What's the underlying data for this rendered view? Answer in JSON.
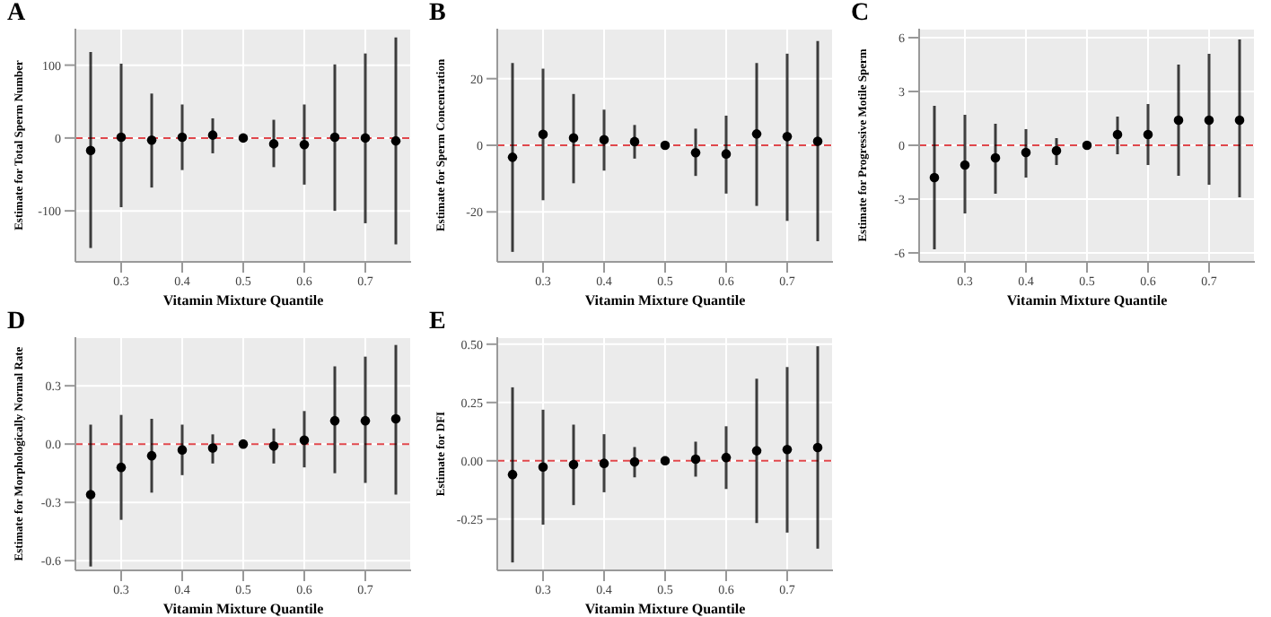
{
  "chart_data": [
    {
      "type": "scatter",
      "title": "A",
      "xlabel": "Vitamin Mixture Quantile",
      "ylabel": "Estimate for Total Sperm Number",
      "color": "#000000",
      "marker": "circle",
      "grid": true,
      "x": [
        0.25,
        0.3,
        0.35,
        0.4,
        0.45,
        0.5,
        0.55,
        0.6,
        0.65,
        0.7,
        0.75
      ],
      "values": [
        -17,
        1,
        -3,
        1,
        4,
        0,
        -8,
        -9,
        1,
        0,
        -4
      ],
      "errors": [
        [
          -151,
          118
        ],
        [
          -95,
          102
        ],
        [
          -68,
          61
        ],
        [
          -44,
          46
        ],
        [
          -21,
          27
        ],
        null,
        [
          -40,
          25
        ],
        [
          -64,
          46
        ],
        [
          -100,
          101
        ],
        [
          -117,
          116
        ],
        [
          -146,
          138
        ]
      ],
      "xlim": [
        0.225,
        0.775
      ],
      "xticks": [
        0.3,
        0.4,
        0.5,
        0.6,
        0.7
      ],
      "ylim": [
        -170,
        150
      ],
      "yticks": [
        -100,
        0,
        100
      ],
      "ref_lines": [
        {
          "axis": "y",
          "value": 0,
          "color": "#e0474c",
          "line_style": "dashed"
        }
      ]
    },
    {
      "type": "scatter",
      "title": "B",
      "xlabel": "Vitamin Mixture Quantile",
      "ylabel": "Estimate for Sperm Concentration",
      "color": "#000000",
      "marker": "circle",
      "grid": true,
      "x": [
        0.25,
        0.3,
        0.35,
        0.4,
        0.45,
        0.5,
        0.55,
        0.6,
        0.65,
        0.7,
        0.75
      ],
      "values": [
        -3.6,
        3.3,
        2.2,
        1.7,
        1.1,
        0,
        -2.2,
        -2.6,
        3.4,
        2.6,
        1.2
      ],
      "errors": [
        [
          -32,
          24.7
        ],
        [
          -16.5,
          23
        ],
        [
          -11.4,
          15.4
        ],
        [
          -7.6,
          10.7
        ],
        [
          -4,
          6.1
        ],
        null,
        [
          -9.2,
          5
        ],
        [
          -14.5,
          8.9
        ],
        [
          -18.2,
          24.7
        ],
        [
          -22.7,
          27.5
        ],
        [
          -28.8,
          31.3
        ]
      ],
      "xlim": [
        0.225,
        0.775
      ],
      "xticks": [
        0.3,
        0.4,
        0.5,
        0.6,
        0.7
      ],
      "ylim": [
        -35,
        35
      ],
      "yticks": [
        -20,
        0,
        20
      ],
      "ref_lines": [
        {
          "axis": "y",
          "value": 0,
          "color": "#e0474c",
          "line_style": "dashed"
        }
      ]
    },
    {
      "type": "scatter",
      "title": "C",
      "xlabel": "Vitamin Mixture Quantile",
      "ylabel": "Estimate for Progressive Motile Sperm",
      "color": "#000000",
      "marker": "circle",
      "grid": true,
      "x": [
        0.25,
        0.3,
        0.35,
        0.4,
        0.45,
        0.5,
        0.55,
        0.6,
        0.65,
        0.7,
        0.75
      ],
      "values": [
        -1.8,
        -1.1,
        -0.7,
        -0.4,
        -0.3,
        0,
        0.6,
        0.6,
        1.4,
        1.4,
        1.4
      ],
      "errors": [
        [
          -5.8,
          2.2
        ],
        [
          -3.8,
          1.7
        ],
        [
          -2.7,
          1.2
        ],
        [
          -1.8,
          0.9
        ],
        [
          -1.1,
          0.4
        ],
        null,
        [
          -0.5,
          1.6
        ],
        [
          -1.1,
          2.3
        ],
        [
          -1.7,
          4.5
        ],
        [
          -2.2,
          5.1
        ],
        [
          -2.9,
          5.9
        ]
      ],
      "xlim": [
        0.225,
        0.775
      ],
      "xticks": [
        0.3,
        0.4,
        0.5,
        0.6,
        0.7
      ],
      "ylim": [
        -6.5,
        6.5
      ],
      "yticks": [
        -6,
        -3,
        0,
        3,
        6
      ],
      "ref_lines": [
        {
          "axis": "y",
          "value": 0,
          "color": "#e0474c",
          "line_style": "dashed"
        }
      ]
    },
    {
      "type": "scatter",
      "title": "D",
      "xlabel": "Vitamin Mixture Quantile",
      "ylabel": "Estimate for Morphologically Normal Rate",
      "color": "#000000",
      "marker": "circle",
      "grid": true,
      "x": [
        0.25,
        0.3,
        0.35,
        0.4,
        0.45,
        0.5,
        0.55,
        0.6,
        0.65,
        0.7,
        0.75
      ],
      "values": [
        -0.26,
        -0.12,
        -0.06,
        -0.03,
        -0.02,
        0,
        -0.01,
        0.02,
        0.12,
        0.12,
        0.13
      ],
      "errors": [
        [
          -0.63,
          0.1
        ],
        [
          -0.39,
          0.15
        ],
        [
          -0.25,
          0.13
        ],
        [
          -0.16,
          0.1
        ],
        [
          -0.1,
          0.05
        ],
        null,
        [
          -0.1,
          0.08
        ],
        [
          -0.12,
          0.17
        ],
        [
          -0.15,
          0.4
        ],
        [
          -0.2,
          0.45
        ],
        [
          -0.26,
          0.51
        ]
      ],
      "xlim": [
        0.225,
        0.775
      ],
      "xticks": [
        0.3,
        0.4,
        0.5,
        0.6,
        0.7
      ],
      "ylim": [
        -0.65,
        0.55
      ],
      "yticks": [
        {
          "value": -0.6,
          "label": "-0.6"
        },
        {
          "value": -0.3,
          "label": "-0.3"
        },
        {
          "value": 0,
          "label": "0.0"
        },
        {
          "value": 0.3,
          "label": "0.3"
        }
      ],
      "ref_lines": [
        {
          "axis": "y",
          "value": 0,
          "color": "#e0474c",
          "line_style": "dashed"
        }
      ]
    },
    {
      "type": "scatter",
      "title": "E",
      "xlabel": "Vitamin Mixture Quantile",
      "ylabel": "Estimate for DFI",
      "color": "#000000",
      "marker": "circle",
      "grid": true,
      "x": [
        0.25,
        0.3,
        0.35,
        0.4,
        0.45,
        0.5,
        0.55,
        0.6,
        0.65,
        0.7,
        0.75
      ],
      "values": [
        -0.059,
        -0.027,
        -0.016,
        -0.011,
        -0.005,
        0,
        0.007,
        0.014,
        0.043,
        0.048,
        0.057
      ],
      "errors": [
        [
          -0.436,
          0.315
        ],
        [
          -0.274,
          0.219
        ],
        [
          -0.19,
          0.155
        ],
        [
          -0.135,
          0.114
        ],
        [
          -0.071,
          0.059
        ],
        null,
        [
          -0.068,
          0.082
        ],
        [
          -0.121,
          0.148
        ],
        [
          -0.267,
          0.352
        ],
        [
          -0.308,
          0.402
        ],
        [
          -0.377,
          0.491
        ]
      ],
      "xlim": [
        0.225,
        0.775
      ],
      "xticks": [
        0.3,
        0.4,
        0.5,
        0.6,
        0.7
      ],
      "ylim": [
        -0.47,
        0.53
      ],
      "yticks": [
        {
          "value": -0.25,
          "label": "-0.25"
        },
        {
          "value": 0,
          "label": "0.00"
        },
        {
          "value": 0.25,
          "label": "0.25"
        },
        {
          "value": 0.5,
          "label": "0.50"
        }
      ],
      "ref_lines": [
        {
          "axis": "y",
          "value": 0,
          "color": "#e0474c",
          "line_style": "dashed"
        }
      ]
    }
  ]
}
